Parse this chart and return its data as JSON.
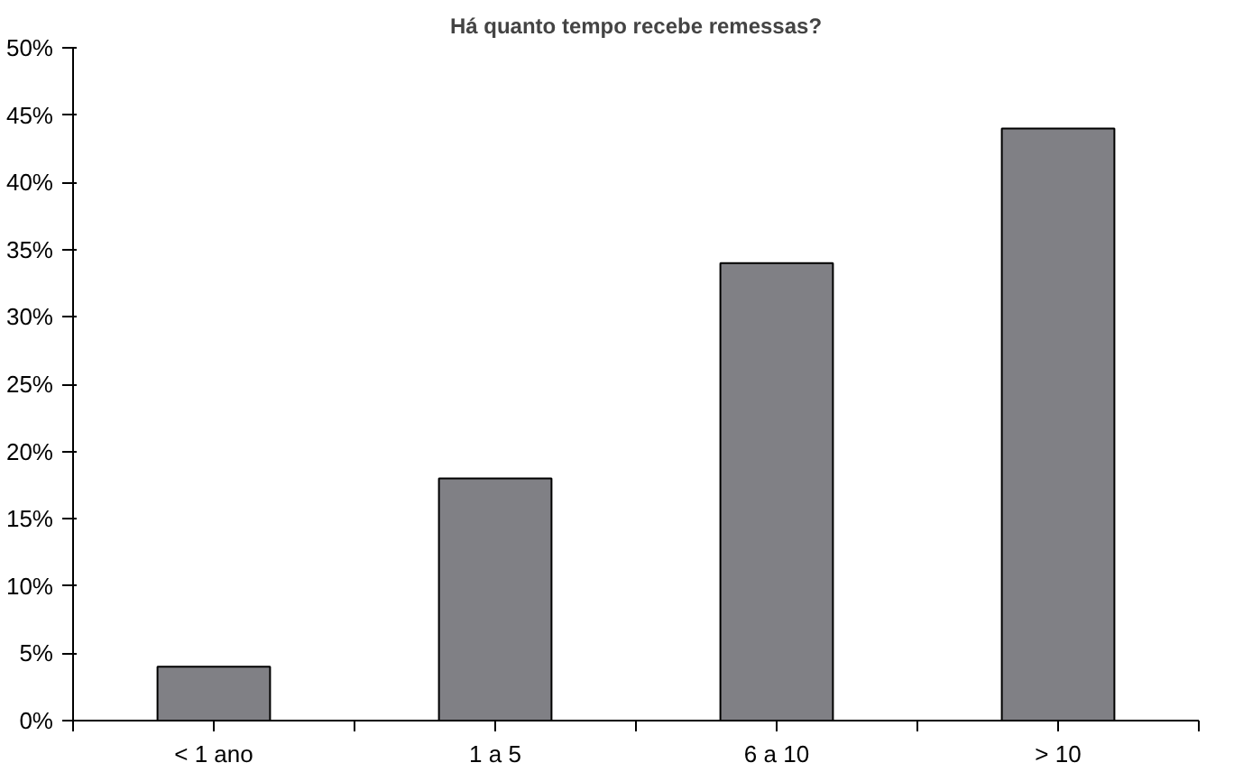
{
  "chart_data": {
    "type": "bar",
    "title": "Há quanto tempo recebe remessas?",
    "categories": [
      "< 1 ano",
      "1 a 5",
      "6 a 10",
      "> 10"
    ],
    "values": [
      4,
      18,
      34,
      44
    ],
    "color": "#808085",
    "ylim": [
      0,
      50
    ],
    "yticks": [
      {
        "value": 0,
        "label": "0%"
      },
      {
        "value": 5,
        "label": "5%"
      },
      {
        "value": 10,
        "label": "10%"
      },
      {
        "value": 15,
        "label": "15%"
      },
      {
        "value": 20,
        "label": "20%"
      },
      {
        "value": 25,
        "label": "25%"
      },
      {
        "value": 30,
        "label": "30%"
      },
      {
        "value": 35,
        "label": "35%"
      },
      {
        "value": 40,
        "label": "40%"
      },
      {
        "value": 45,
        "label": "45%"
      },
      {
        "value": 50,
        "label": "50%"
      }
    ],
    "grid": false
  }
}
